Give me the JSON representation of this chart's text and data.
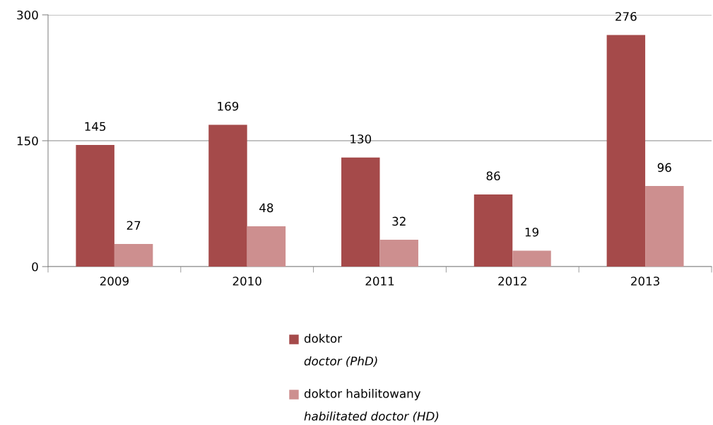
{
  "chart_data": {
    "type": "bar",
    "categories": [
      "2009",
      "2010",
      "2011",
      "2012",
      "2013"
    ],
    "series": [
      {
        "name": "doktor\ndoctor (PhD)",
        "color": "#a54a4a",
        "values": [
          145,
          169,
          130,
          86,
          276
        ]
      },
      {
        "name": "doktor habilitowany\nhabilitated doctor (HD)",
        "color": "#cd8f8f",
        "values": [
          27,
          48,
          32,
          19,
          96
        ]
      }
    ],
    "ylim": [
      0,
      300
    ],
    "yticks": [
      0,
      150,
      300
    ],
    "grid": "y",
    "data_labels": true,
    "legend": "bottom"
  }
}
